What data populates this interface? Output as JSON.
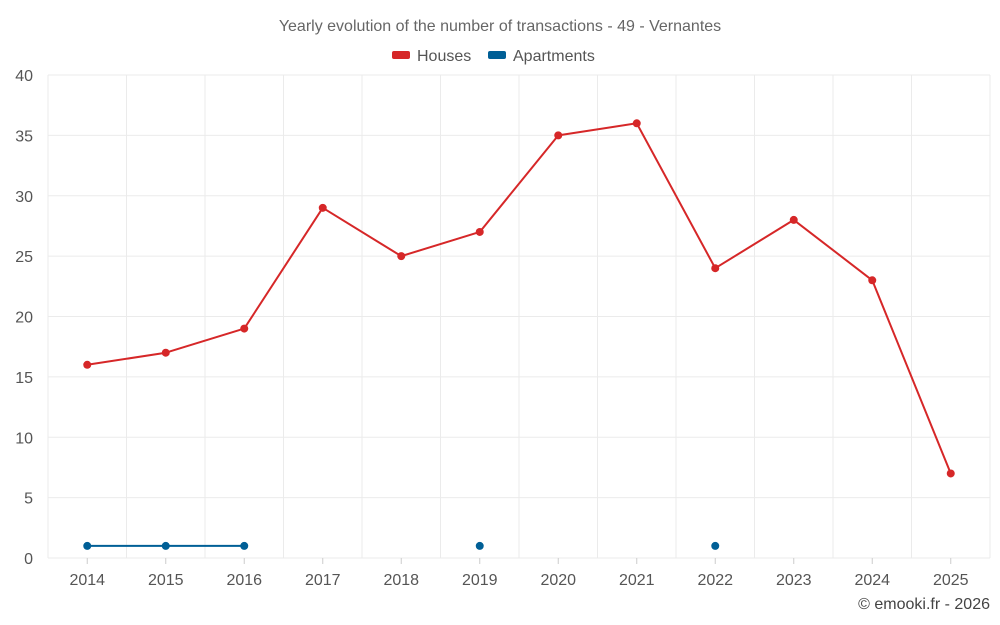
{
  "chart_data": {
    "type": "line",
    "title": "Yearly evolution of the number of transactions - 49 - Vernantes",
    "categories": [
      "2014",
      "2015",
      "2016",
      "2017",
      "2018",
      "2019",
      "2020",
      "2021",
      "2022",
      "2023",
      "2024",
      "2025"
    ],
    "series": [
      {
        "name": "Houses",
        "color": "#d62728",
        "values": [
          16,
          17,
          19,
          29,
          25,
          27,
          35,
          36,
          24,
          28,
          23,
          7
        ]
      },
      {
        "name": "Apartments",
        "color": "#005f96",
        "values": [
          1,
          1,
          1,
          null,
          null,
          1,
          null,
          null,
          1,
          null,
          null,
          null
        ]
      }
    ],
    "ylim": [
      0,
      40
    ],
    "yticks": [
      0,
      5,
      10,
      15,
      20,
      25,
      30,
      35,
      40
    ],
    "xlabel": "",
    "ylabel": "",
    "grid": true,
    "legend": "top-center"
  },
  "credit": "© emooki.fr - 2026"
}
